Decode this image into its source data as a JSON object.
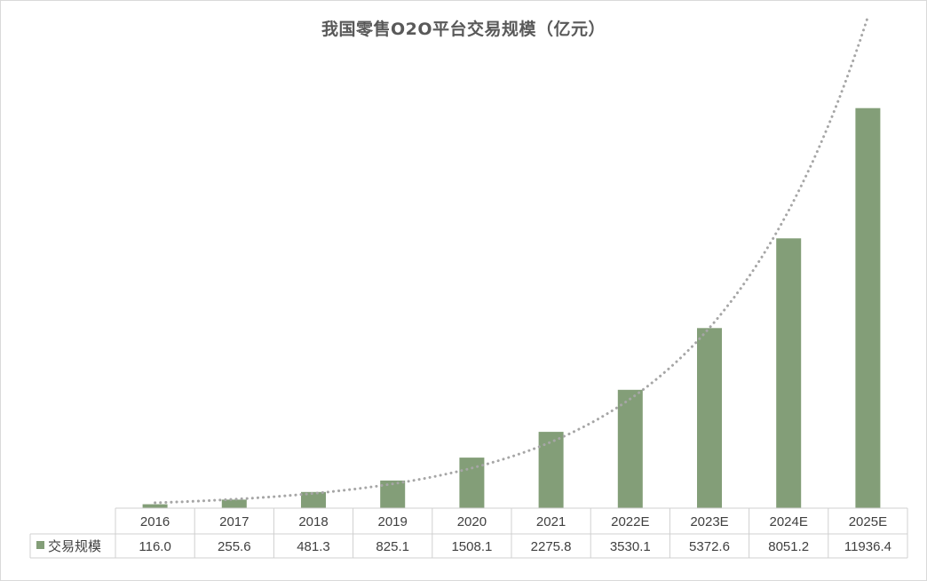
{
  "chart_data": {
    "type": "bar",
    "title": "我国零售O2O平台交易规模（亿元）",
    "categories": [
      "2016",
      "2017",
      "2018",
      "2019",
      "2020",
      "2021",
      "2022E",
      "2023E",
      "2024E",
      "2025E"
    ],
    "series": [
      {
        "name": "交易规模",
        "values": [
          116.0,
          255.6,
          481.3,
          825.1,
          1508.1,
          2275.8,
          3530.1,
          5372.6,
          8051.2,
          11936.4
        ],
        "labels": [
          "116.0",
          "255.6",
          "481.3",
          "825.1",
          "1508.1",
          "2275.8",
          "3530.1",
          "5372.6",
          "8051.2",
          "11936.4"
        ],
        "color": "#839e78"
      }
    ],
    "trendline": {
      "type": "exponential",
      "style": "dotted",
      "color": "#a6a6a6"
    },
    "data_table": true,
    "grid": false,
    "ylim": [
      0,
      14500
    ]
  }
}
